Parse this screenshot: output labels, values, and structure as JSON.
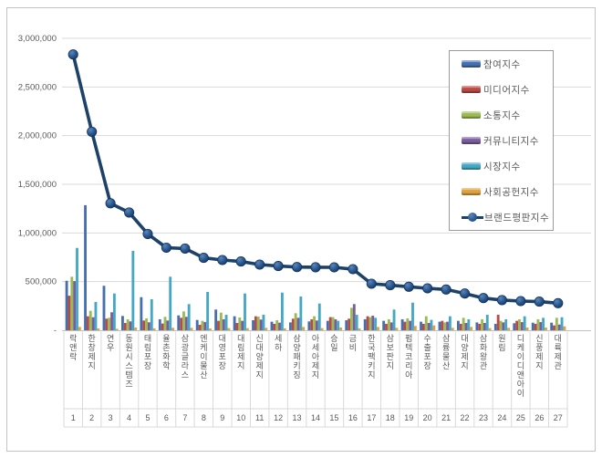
{
  "chart_data": {
    "type": "bar",
    "note": "combo bar + line; last series is the line overlay",
    "title": "",
    "xlabel": "",
    "ylabel": "",
    "ylim": [
      0,
      3000000
    ],
    "ytick_step": 500000,
    "ytick_labels": [
      "-",
      "500,000",
      "1,000,000",
      "1,500,000",
      "2,000,000",
      "2,500,000",
      "3,000,000"
    ],
    "grid": true,
    "legend_position": "right-inside",
    "categories": [
      "락앤락",
      "한창제지",
      "연우",
      "동원시스템즈",
      "태림포장",
      "율촌화학",
      "삼광글라스",
      "엔케이물산",
      "대영포장",
      "대림제지",
      "신대양제지",
      "세하",
      "삼양패키징",
      "아세아제지",
      "승일",
      "금비",
      "한국팩키지",
      "삼보판지",
      "펌텍코리아",
      "수출포장",
      "삼륭물산",
      "대양제지",
      "삼화왕관",
      "원림",
      "디케이디앤아이",
      "신풍제지",
      "대륙제관"
    ],
    "ranks": [
      "1",
      "2",
      "3",
      "4",
      "5",
      "6",
      "7",
      "8",
      "9",
      "10",
      "11",
      "12",
      "13",
      "14",
      "15",
      "16",
      "17",
      "18",
      "19",
      "20",
      "21",
      "22",
      "23",
      "24",
      "25",
      "26",
      "27"
    ],
    "series": [
      {
        "name": "참여지수",
        "kind": "bar",
        "color": "#466fae",
        "values": [
          509000,
          1285000,
          457000,
          147000,
          340000,
          113000,
          153000,
          106000,
          213000,
          144000,
          103000,
          88000,
          81000,
          91000,
          97000,
          103000,
          113000,
          97000,
          113000,
          88000,
          88000,
          97000,
          81000,
          66000,
          72000,
          78000,
          78000
        ]
      },
      {
        "name": "미디어지수",
        "kind": "bar",
        "color": "#b94a44",
        "values": [
          355000,
          144000,
          119000,
          75000,
          100000,
          69000,
          128000,
          56000,
          97000,
          75000,
          144000,
          66000,
          119000,
          113000,
          135000,
          119000,
          144000,
          66000,
          88000,
          66000,
          97000,
          66000,
          66000,
          159000,
          97000,
          66000,
          50000
        ]
      },
      {
        "name": "소통지수",
        "kind": "bar",
        "color": "#9aba53",
        "values": [
          550000,
          200000,
          128000,
          113000,
          122000,
          138000,
          194000,
          97000,
          181000,
          131000,
          140000,
          103000,
          175000,
          144000,
          135000,
          231000,
          135000,
          113000,
          122000,
          144000,
          81000,
          128000,
          113000,
          97000,
          113000,
          113000,
          128000
        ]
      },
      {
        "name": "커뮤니티지수",
        "kind": "bar",
        "color": "#7a5d9e",
        "values": [
          505000,
          134000,
          185000,
          91000,
          82000,
          100000,
          138000,
          85000,
          113000,
          97000,
          110000,
          78000,
          128000,
          100000,
          113000,
          269000,
          150000,
          81000,
          97000,
          75000,
          88000,
          75000,
          75000,
          81000,
          84000,
          84000,
          59000
        ]
      },
      {
        "name": "시장지수",
        "kind": "bar",
        "color": "#44a8c2",
        "values": [
          846000,
          291000,
          378000,
          816000,
          319000,
          550000,
          269000,
          394000,
          159000,
          378000,
          160000,
          387000,
          347000,
          275000,
          97000,
          159000,
          128000,
          213000,
          284000,
          107000,
          144000,
          113000,
          159000,
          113000,
          144000,
          128000,
          134000
        ]
      },
      {
        "name": "사회공헌지수",
        "kind": "bar",
        "color": "#dfa03f",
        "values": [
          34000,
          19000,
          15000,
          28000,
          20000,
          25000,
          25000,
          19000,
          22000,
          22000,
          25000,
          20000,
          34000,
          22000,
          28000,
          20000,
          34000,
          25000,
          44000,
          50000,
          25000,
          34000,
          22000,
          25000,
          28000,
          28000,
          40000
        ]
      },
      {
        "name": "브랜드평판지수",
        "kind": "line",
        "color": "#1d4269",
        "values": [
          2834000,
          2040000,
          1305000,
          1210000,
          990000,
          848000,
          840000,
          744000,
          722000,
          707000,
          675000,
          660000,
          650000,
          648000,
          647000,
          628000,
          478000,
          463000,
          447000,
          431000,
          419000,
          378000,
          331000,
          310000,
          300000,
          294000,
          278000
        ]
      }
    ]
  },
  "colors": {
    "grid": "#d9d9d9",
    "axis_line": "#c0c0c0",
    "cell_border": "#d9d9d9",
    "tick_text": "#595959",
    "frame_border": "#c3c3c3",
    "legend_border": "#9b9b9b",
    "line": "#1d4269"
  }
}
